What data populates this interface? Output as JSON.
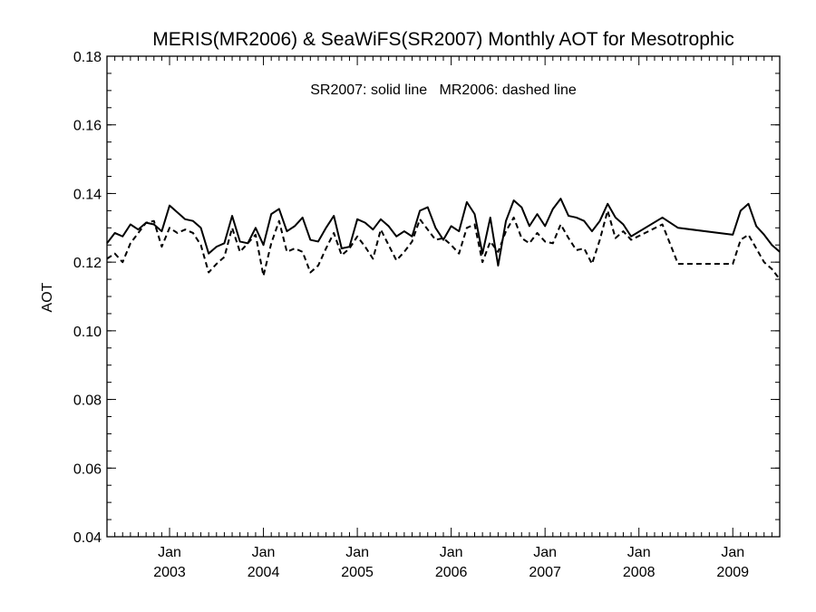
{
  "chart_data": {
    "type": "line",
    "title": "MERIS(MR2006) & SeaWiFS(SR2007) Monthly AOT for Mesotrophic",
    "annotation": "SR2007: solid line   MR2006: dashed line",
    "ylabel": "AOT",
    "xlabel": "",
    "xlim": [
      "2002-05",
      "2009-07"
    ],
    "ylim": [
      0.04,
      0.18
    ],
    "y_ticks": [
      "0.04",
      "0.06",
      "0.08",
      "0.10",
      "0.12",
      "0.14",
      "0.16",
      "0.18"
    ],
    "x_ticks": [
      {
        "month": "Jan",
        "year": "2003",
        "date": "2003-01"
      },
      {
        "month": "Jan",
        "year": "2004",
        "date": "2004-01"
      },
      {
        "month": "Jan",
        "year": "2005",
        "date": "2005-01"
      },
      {
        "month": "Jan",
        "year": "2006",
        "date": "2006-01"
      },
      {
        "month": "Jan",
        "year": "2007",
        "date": "2007-01"
      },
      {
        "month": "Jan",
        "year": "2008",
        "date": "2008-01"
      },
      {
        "month": "Jan",
        "year": "2009",
        "date": "2009-01"
      }
    ],
    "grid": false,
    "legend": "none",
    "series": [
      {
        "name": "SR2007",
        "style": "solid",
        "color": "#000000",
        "points": [
          [
            "2002-05",
            0.1255
          ],
          [
            "2002-06",
            0.1285
          ],
          [
            "2002-07",
            0.1275
          ],
          [
            "2002-08",
            0.131
          ],
          [
            "2002-09",
            0.1295
          ],
          [
            "2002-10",
            0.1315
          ],
          [
            "2002-11",
            0.131
          ],
          [
            "2002-12",
            0.129
          ],
          [
            "2003-01",
            0.1365
          ],
          [
            "2003-02",
            0.1345
          ],
          [
            "2003-03",
            0.1325
          ],
          [
            "2003-04",
            0.132
          ],
          [
            "2003-05",
            0.13
          ],
          [
            "2003-06",
            0.1225
          ],
          [
            "2003-07",
            0.1245
          ],
          [
            "2003-08",
            0.1255
          ],
          [
            "2003-09",
            0.1335
          ],
          [
            "2003-10",
            0.126
          ],
          [
            "2003-11",
            0.1255
          ],
          [
            "2003-12",
            0.13
          ],
          [
            "2004-01",
            0.125
          ],
          [
            "2004-02",
            0.134
          ],
          [
            "2004-03",
            0.1355
          ],
          [
            "2004-04",
            0.129
          ],
          [
            "2004-05",
            0.1305
          ],
          [
            "2004-06",
            0.133
          ],
          [
            "2004-07",
            0.1265
          ],
          [
            "2004-08",
            0.126
          ],
          [
            "2004-09",
            0.13
          ],
          [
            "2004-10",
            0.1335
          ],
          [
            "2004-11",
            0.124
          ],
          [
            "2004-12",
            0.1245
          ],
          [
            "2005-01",
            0.1325
          ],
          [
            "2005-02",
            0.1315
          ],
          [
            "2005-03",
            0.1295
          ],
          [
            "2005-04",
            0.1325
          ],
          [
            "2005-05",
            0.1305
          ],
          [
            "2005-06",
            0.1275
          ],
          [
            "2005-07",
            0.129
          ],
          [
            "2005-08",
            0.1275
          ],
          [
            "2005-09",
            0.135
          ],
          [
            "2005-10",
            0.136
          ],
          [
            "2005-11",
            0.13
          ],
          [
            "2005-12",
            0.1265
          ],
          [
            "2006-01",
            0.1305
          ],
          [
            "2006-02",
            0.129
          ],
          [
            "2006-03",
            0.1375
          ],
          [
            "2006-04",
            0.134
          ],
          [
            "2006-05",
            0.1225
          ],
          [
            "2006-06",
            0.133
          ],
          [
            "2006-07",
            0.119
          ],
          [
            "2006-08",
            0.132
          ],
          [
            "2006-09",
            0.138
          ],
          [
            "2006-10",
            0.136
          ],
          [
            "2006-11",
            0.1305
          ],
          [
            "2006-12",
            0.134
          ],
          [
            "2007-01",
            0.1305
          ],
          [
            "2007-02",
            0.1355
          ],
          [
            "2007-03",
            0.1385
          ],
          [
            "2007-04",
            0.1335
          ],
          [
            "2007-05",
            0.133
          ],
          [
            "2007-06",
            0.132
          ],
          [
            "2007-07",
            0.129
          ],
          [
            "2007-08",
            0.132
          ],
          [
            "2007-09",
            0.137
          ],
          [
            "2007-10",
            0.133
          ],
          [
            "2007-11",
            0.131
          ],
          [
            "2007-12",
            0.1275
          ],
          [
            "2008-04",
            0.133
          ],
          [
            "2008-06",
            0.13
          ],
          [
            "2009-01",
            0.128
          ],
          [
            "2009-02",
            0.135
          ],
          [
            "2009-03",
            0.137
          ],
          [
            "2009-04",
            0.1305
          ],
          [
            "2009-05",
            0.128
          ],
          [
            "2009-06",
            0.125
          ],
          [
            "2009-07",
            0.123
          ]
        ]
      },
      {
        "name": "MR2006",
        "style": "dashed",
        "color": "#000000",
        "points": [
          [
            "2002-05",
            0.121
          ],
          [
            "2002-06",
            0.1225
          ],
          [
            "2002-07",
            0.12
          ],
          [
            "2002-08",
            0.1255
          ],
          [
            "2002-09",
            0.1285
          ],
          [
            "2002-10",
            0.1315
          ],
          [
            "2002-11",
            0.132
          ],
          [
            "2002-12",
            0.1245
          ],
          [
            "2003-01",
            0.13
          ],
          [
            "2003-02",
            0.1285
          ],
          [
            "2003-03",
            0.1295
          ],
          [
            "2003-04",
            0.1285
          ],
          [
            "2003-05",
            0.125
          ],
          [
            "2003-06",
            0.117
          ],
          [
            "2003-07",
            0.1195
          ],
          [
            "2003-08",
            0.1215
          ],
          [
            "2003-09",
            0.13
          ],
          [
            "2003-10",
            0.123
          ],
          [
            "2003-11",
            0.1255
          ],
          [
            "2003-12",
            0.128
          ],
          [
            "2004-01",
            0.116
          ],
          [
            "2004-02",
            0.1255
          ],
          [
            "2004-03",
            0.132
          ],
          [
            "2004-04",
            0.123
          ],
          [
            "2004-05",
            0.124
          ],
          [
            "2004-06",
            0.123
          ],
          [
            "2004-07",
            0.117
          ],
          [
            "2004-08",
            0.119
          ],
          [
            "2004-09",
            0.124
          ],
          [
            "2004-10",
            0.1285
          ],
          [
            "2004-11",
            0.122
          ],
          [
            "2004-12",
            0.124
          ],
          [
            "2005-01",
            0.1275
          ],
          [
            "2005-02",
            0.1245
          ],
          [
            "2005-03",
            0.121
          ],
          [
            "2005-04",
            0.1295
          ],
          [
            "2005-05",
            0.125
          ],
          [
            "2005-06",
            0.1205
          ],
          [
            "2005-07",
            0.123
          ],
          [
            "2005-08",
            0.126
          ],
          [
            "2005-09",
            0.1325
          ],
          [
            "2005-10",
            0.1295
          ],
          [
            "2005-11",
            0.1265
          ],
          [
            "2005-12",
            0.127
          ],
          [
            "2006-01",
            0.125
          ],
          [
            "2006-02",
            0.1225
          ],
          [
            "2006-03",
            0.13
          ],
          [
            "2006-04",
            0.131
          ],
          [
            "2006-05",
            0.12
          ],
          [
            "2006-06",
            0.126
          ],
          [
            "2006-07",
            0.123
          ],
          [
            "2006-08",
            0.129
          ],
          [
            "2006-09",
            0.133
          ],
          [
            "2006-10",
            0.127
          ],
          [
            "2006-11",
            0.1255
          ],
          [
            "2006-12",
            0.1285
          ],
          [
            "2007-01",
            0.126
          ],
          [
            "2007-02",
            0.1255
          ],
          [
            "2007-03",
            0.131
          ],
          [
            "2007-04",
            0.127
          ],
          [
            "2007-05",
            0.1235
          ],
          [
            "2007-06",
            0.124
          ],
          [
            "2007-07",
            0.1195
          ],
          [
            "2007-08",
            0.1265
          ],
          [
            "2007-09",
            0.135
          ],
          [
            "2007-10",
            0.127
          ],
          [
            "2007-11",
            0.129
          ],
          [
            "2007-12",
            0.1265
          ],
          [
            "2008-04",
            0.131
          ],
          [
            "2008-06",
            0.1195
          ],
          [
            "2009-01",
            0.1195
          ],
          [
            "2009-02",
            0.1265
          ],
          [
            "2009-03",
            0.128
          ],
          [
            "2009-04",
            0.124
          ],
          [
            "2009-05",
            0.12
          ],
          [
            "2009-06",
            0.118
          ],
          [
            "2009-07",
            0.115
          ]
        ]
      }
    ]
  }
}
